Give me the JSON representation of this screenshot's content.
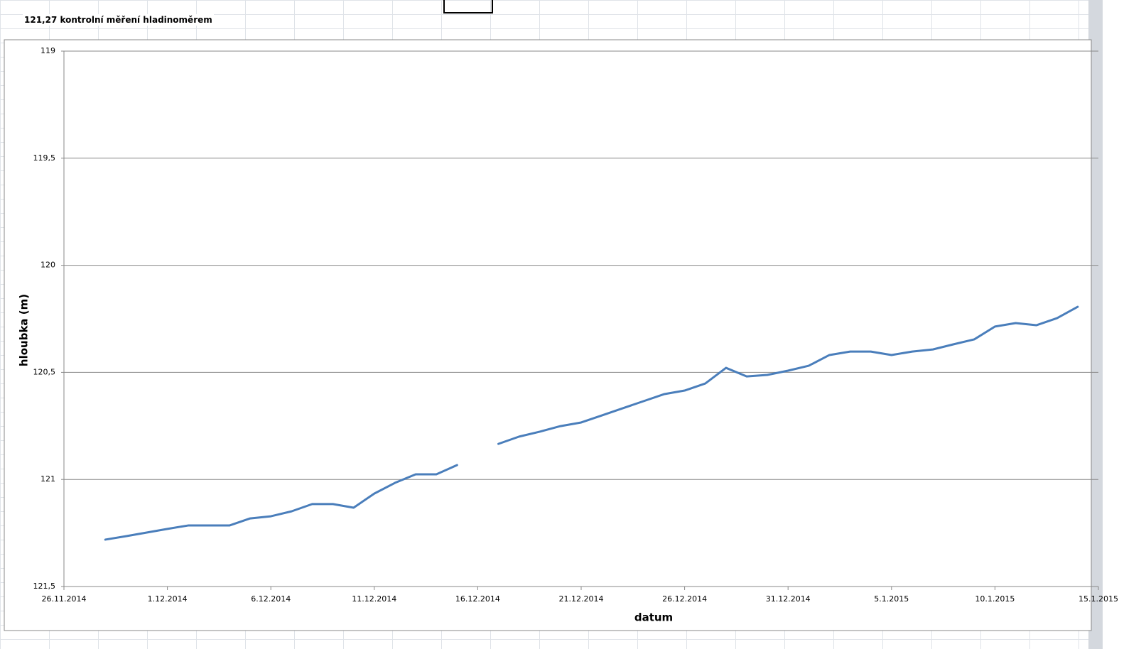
{
  "header": {
    "note": "121,27 kontrolní měření hladinoměrem"
  },
  "chart_data": {
    "type": "line",
    "y_label": "hloubka (m)",
    "x_label": "datum",
    "x": [
      "28.11.2014",
      "29.11.2014",
      "30.11.2014",
      "1.12.2014",
      "2.12.2014",
      "3.12.2014",
      "4.12.2014",
      "5.12.2014",
      "6.12.2014",
      "7.12.2014",
      "8.12.2014",
      "9.12.2014",
      "10.12.2014",
      "11.12.2014",
      "12.12.2014",
      "13.12.2014",
      "14.12.2014",
      "15.12.2014",
      "16.12.2014",
      "17.12.2014",
      "18.12.2014",
      "19.12.2014",
      "20.12.2014",
      "21.12.2014",
      "22.12.2014",
      "23.12.2014",
      "24.12.2014",
      "25.12.2014",
      "26.12.2014",
      "27.12.2014",
      "28.12.2014",
      "29.12.2014",
      "30.12.2014",
      "31.12.2014",
      "1.1.2015",
      "2.1.2015",
      "3.1.2015",
      "4.1.2015",
      "5.1.2015",
      "6.1.2015",
      "7.1.2015",
      "8.1.2015",
      "9.1.2015",
      "10.1.2015",
      "11.1.2015",
      "12.1.2015",
      "13.1.2015",
      "14.1.2015"
    ],
    "series": [
      {
        "color": "#4a7ebb",
        "values": [
          121.281,
          121.265,
          121.248,
          121.231,
          121.215,
          121.215,
          121.215,
          121.182,
          121.172,
          121.149,
          121.115,
          121.115,
          121.132,
          121.066,
          121.016,
          120.976,
          120.976,
          120.933,
          null,
          120.834,
          120.8,
          120.777,
          120.751,
          120.734,
          120.701,
          120.668,
          120.635,
          120.602,
          120.585,
          120.552,
          120.479,
          120.519,
          120.512,
          120.492,
          120.469,
          120.419,
          120.403,
          120.403,
          120.419,
          120.403,
          120.393,
          120.369,
          120.346,
          120.286,
          120.27,
          120.28,
          120.247,
          120.194
        ]
      }
    ],
    "xlim": [
      "26.11.2014",
      "15.1.2015"
    ],
    "xticks": [
      "26.11.2014",
      "1.12.2014",
      "6.12.2014",
      "11.12.2014",
      "16.12.2014",
      "21.12.2014",
      "26.12.2014",
      "31.12.2014",
      "5.1.2015",
      "10.1.2015",
      "15.1.2015"
    ],
    "ylim": [
      119,
      121.5
    ],
    "y_reversed": true,
    "yticks": [
      119,
      {
        "value": 119.5,
        "label": "119,5"
      },
      120,
      {
        "value": 120.5,
        "label": "120,5"
      },
      121,
      {
        "value": 121.5,
        "label": "121,5"
      }
    ],
    "grid": true
  }
}
